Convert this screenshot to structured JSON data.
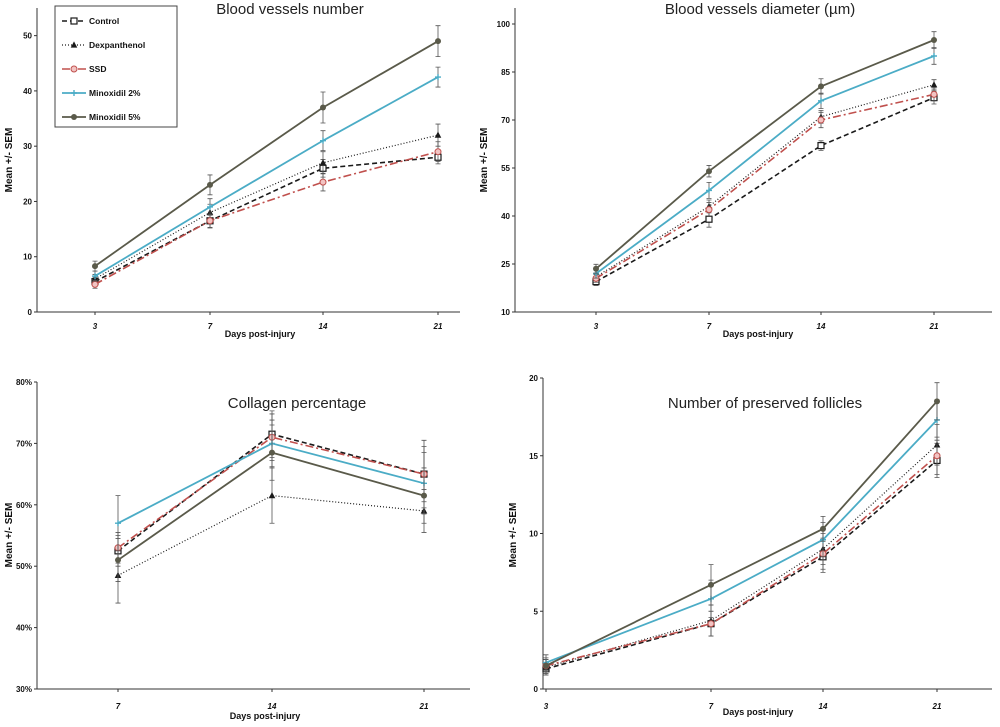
{
  "series_styles": [
    {
      "name": "Control",
      "color": "#1a1a1a",
      "dash": "5,3",
      "width": 1.6,
      "marker": "open-square"
    },
    {
      "name": "Dexpanthenol",
      "color": "#1a1a1a",
      "dash": "1,2",
      "width": 1.2,
      "marker": "triangle"
    },
    {
      "name": "SSD",
      "color": "#c0504d",
      "dash": "8,3,2,3",
      "width": 1.6,
      "marker": "circle-red"
    },
    {
      "name": "Minoxidil 2%",
      "color": "#4bacc6",
      "dash": "",
      "width": 1.8,
      "marker": "cross"
    },
    {
      "name": "Minoxidil 5%",
      "color": "#5a5a4a",
      "dash": "",
      "width": 1.8,
      "marker": "filled-circle"
    }
  ],
  "legend": {
    "entries": [
      "Control",
      "Dexpanthenol",
      "SSD",
      "Minoxidil 2%",
      "Minoxidil 5%"
    ]
  },
  "chart_data": [
    {
      "type": "line",
      "title": "Blood vessels number",
      "xlabel": "Days post-injury",
      "ylabel": "Mean +/- SEM",
      "categories": [
        "3",
        "7",
        "14",
        "21"
      ],
      "yticks": [
        "0",
        "10",
        "20",
        "30",
        "40",
        "50"
      ],
      "ylim": [
        0,
        55
      ],
      "series": [
        {
          "name": "Control",
          "values": [
            5.5,
            16.5,
            26,
            28
          ],
          "err": [
            0.8,
            1.3,
            1.6,
            1.2
          ]
        },
        {
          "name": "Dexpanthenol",
          "values": [
            6,
            18,
            27,
            32
          ],
          "err": [
            0.8,
            1.5,
            2,
            2
          ]
        },
        {
          "name": "SSD",
          "values": [
            5,
            16.5,
            23.5,
            29
          ],
          "err": [
            0.7,
            1.2,
            1.6,
            1.8
          ]
        },
        {
          "name": "Minoxidil 2%",
          "values": [
            6.5,
            19,
            31,
            42.5
          ],
          "err": [
            0.9,
            1.5,
            1.8,
            1.8
          ]
        },
        {
          "name": "Minoxidil 5%",
          "values": [
            8.3,
            23,
            37,
            49
          ],
          "err": [
            0.9,
            1.8,
            2.8,
            2.8
          ]
        }
      ]
    },
    {
      "type": "line",
      "title": "Blood vessels diameter (µm)",
      "xlabel": "Days post-injury",
      "ylabel": "Mean +/- SEM",
      "categories": [
        "3",
        "7",
        "14",
        "21"
      ],
      "yticks": [
        "10",
        "25",
        "40",
        "55",
        "70",
        "85",
        "100"
      ],
      "ylim": [
        10,
        105
      ],
      "series": [
        {
          "name": "Control",
          "values": [
            19.5,
            39,
            62,
            77
          ],
          "err": [
            1.2,
            2.5,
            1.5,
            2
          ]
        },
        {
          "name": "Dexpanthenol",
          "values": [
            21,
            43,
            71,
            81
          ],
          "err": [
            1.2,
            2,
            2,
            1.6
          ]
        },
        {
          "name": "SSD",
          "values": [
            20.5,
            42,
            70,
            78
          ],
          "err": [
            1.2,
            2.2,
            2.4,
            2
          ]
        },
        {
          "name": "Minoxidil 2%",
          "values": [
            22,
            48,
            76,
            90
          ],
          "err": [
            1.4,
            2.5,
            2.4,
            2.6
          ]
        },
        {
          "name": "Minoxidil 5%",
          "values": [
            23.5,
            54,
            80.5,
            95
          ],
          "err": [
            1.4,
            1.8,
            2.4,
            2.6
          ]
        }
      ]
    },
    {
      "type": "line",
      "title": "Collagen percentage",
      "xlabel": "Days post-injury",
      "ylabel": "Mean +/- SEM",
      "categories": [
        "7",
        "14",
        "21"
      ],
      "yticks": [
        "30%",
        "40%",
        "50%",
        "60%",
        "70%",
        "80%"
      ],
      "ylim": [
        30,
        80
      ],
      "series": [
        {
          "name": "Control",
          "values": [
            52.5,
            71.5,
            65
          ],
          "err": [
            2.5,
            3.8,
            4.5
          ]
        },
        {
          "name": "Dexpanthenol",
          "values": [
            48.5,
            61.5,
            59
          ],
          "err": [
            4.5,
            4.5,
            3.5
          ]
        },
        {
          "name": "SSD",
          "values": [
            53,
            71,
            65
          ],
          "err": [
            2.5,
            3.8,
            5.5
          ]
        },
        {
          "name": "Minoxidil 2%",
          "values": [
            57,
            70,
            63.5
          ],
          "err": [
            4.5,
            3.8,
            5
          ]
        },
        {
          "name": "Minoxidil 5%",
          "values": [
            51,
            68.5,
            61.5
          ],
          "err": [
            3.5,
            4.5,
            4.5
          ]
        }
      ]
    },
    {
      "type": "line",
      "title": "Number of preserved follicles",
      "xlabel": "Days post-injury",
      "ylabel": "Mean +/- SEM",
      "categories": [
        "3",
        "7",
        "14",
        "21"
      ],
      "yticks": [
        "0",
        "5",
        "10",
        "15",
        "20"
      ],
      "ylim": [
        0,
        20
      ],
      "series": [
        {
          "name": "Control",
          "values": [
            1.3,
            4.2,
            8.5,
            14.7
          ],
          "err": [
            0.4,
            0.8,
            1,
            1.1
          ]
        },
        {
          "name": "Dexpanthenol",
          "values": [
            1.4,
            4.4,
            9,
            15.7
          ],
          "err": [
            0.5,
            1,
            1,
            1.3
          ]
        },
        {
          "name": "SSD",
          "values": [
            1.5,
            4.2,
            8.7,
            15
          ],
          "err": [
            0.4,
            0.8,
            1,
            1.2
          ]
        },
        {
          "name": "Minoxidil 2%",
          "values": [
            1.7,
            5.8,
            9.6,
            17.3
          ],
          "err": [
            0.5,
            1.2,
            1.1,
            1.3
          ]
        },
        {
          "name": "Minoxidil 5%",
          "values": [
            1.5,
            6.7,
            10.3,
            18.5
          ],
          "err": [
            0.5,
            1.3,
            0.8,
            1.2
          ]
        }
      ]
    }
  ]
}
